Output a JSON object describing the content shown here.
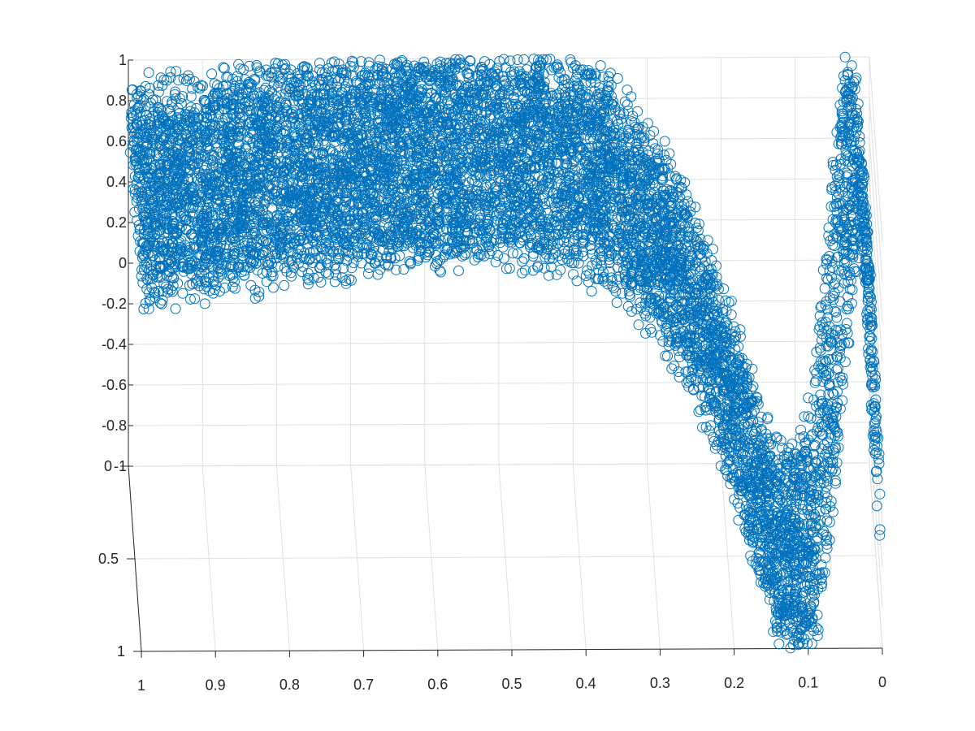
{
  "chart_data": {
    "type": "scatter",
    "projection": "3d",
    "title": "",
    "xlabel": "",
    "ylabel": "",
    "zlabel": "",
    "grid": true,
    "marker": "open-circle",
    "color": "#0072BD",
    "xlim": [
      0,
      1
    ],
    "ylim": [
      0,
      1
    ],
    "zlim": [
      -1,
      1
    ],
    "x_ticks": [
      "1",
      "0.9",
      "0.8",
      "0.7",
      "0.6",
      "0.5",
      "0.4",
      "0.3",
      "0.2",
      "0.1",
      "0"
    ],
    "y_ticks": [
      "0",
      "0.5",
      "1"
    ],
    "z_ticks": [
      "1",
      "0.8",
      "0.6",
      "0.4",
      "0.2",
      "0",
      "-0.2",
      "-0.4",
      "-0.6",
      "-0.8",
      "-1"
    ],
    "series": [
      {
        "description": "dense band tracing z = sin(1/(x+0.1)) with additive noise, sampled over x 0..1 and y 0..1",
        "approx_point_count": 9000,
        "x_range": [
          0,
          1
        ],
        "y_range": [
          0,
          1
        ],
        "z_range": [
          -1,
          1
        ],
        "function": "sin(1/(x+0.1))",
        "noise_amplitude": 0.15
      }
    ]
  }
}
